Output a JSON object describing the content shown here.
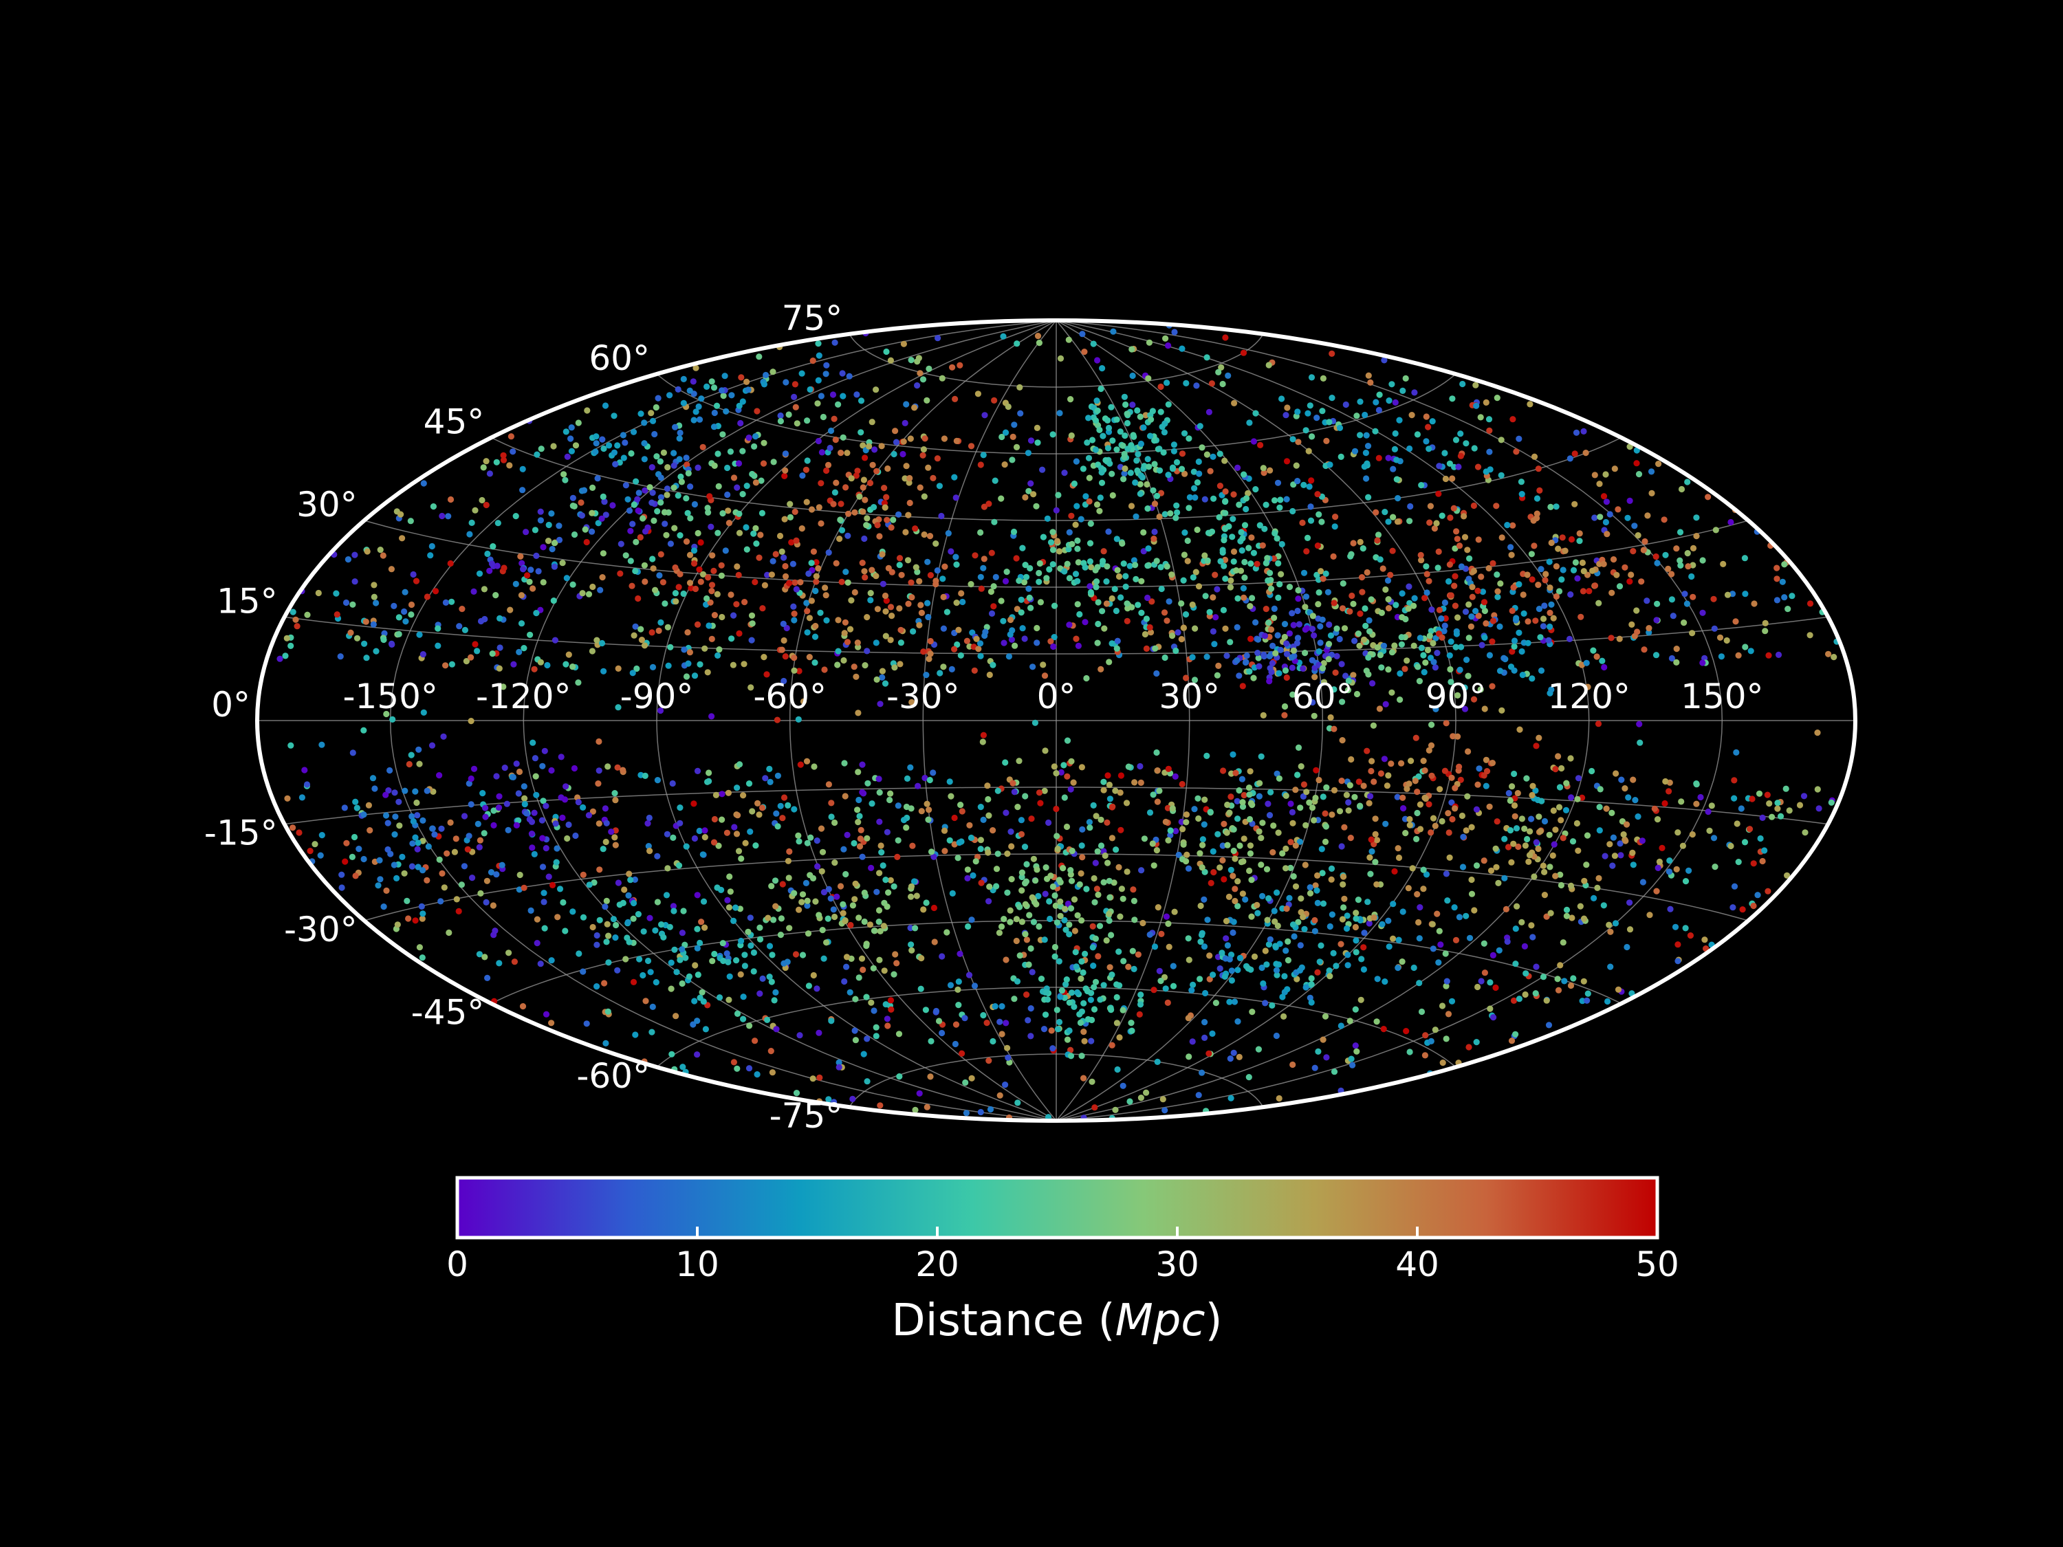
{
  "chart_data": {
    "type": "scatter",
    "projection": "aitoff",
    "background": "#000000",
    "grid": true,
    "lon_ticks": [
      -150,
      -120,
      -90,
      -60,
      -30,
      0,
      30,
      60,
      90,
      120,
      150
    ],
    "lat_ticks": [
      -75,
      -60,
      -45,
      -30,
      -15,
      0,
      15,
      30,
      45,
      60,
      75
    ],
    "lon_tick_labels": [
      "-150°",
      "-120°",
      "-90°",
      "-60°",
      "-30°",
      "0°",
      "30°",
      "60°",
      "90°",
      "120°",
      "150°"
    ],
    "lat_tick_labels": [
      "-75°",
      "-60°",
      "-45°",
      "-30°",
      "-15°",
      "0°",
      "15°",
      "30°",
      "45°",
      "60°",
      "75°"
    ],
    "colorbar": {
      "label_prefix": "Distance (",
      "label_unit": "Mpc",
      "label_suffix": ")",
      "range": [
        0,
        50
      ],
      "ticks": [
        0,
        10,
        20,
        30,
        40,
        50
      ],
      "tick_labels": [
        "0",
        "10",
        "20",
        "30",
        "40",
        "50"
      ],
      "colormap": "rainbow",
      "colormap_stops": [
        "#5a00c8",
        "#2e5cd0",
        "#0f9cc0",
        "#3cc8a8",
        "#86c878",
        "#b4a050",
        "#c8643c",
        "#c00000"
      ],
      "placement": "bottom"
    },
    "clusters": [
      {
        "lon": -145,
        "lat": 55,
        "distance": 12,
        "count": 70,
        "spread": 10
      },
      {
        "lon": -125,
        "lat": 40,
        "distance": 6,
        "count": 45,
        "spread": 7
      },
      {
        "lon": -110,
        "lat": 45,
        "distance": 25,
        "count": 60,
        "spread": 12
      },
      {
        "lon": -60,
        "lat": 50,
        "distance": 42,
        "count": 50,
        "spread": 10
      },
      {
        "lon": -80,
        "lat": 30,
        "distance": 45,
        "count": 40,
        "spread": 8
      },
      {
        "lon": -40,
        "lat": 25,
        "distance": 40,
        "count": 55,
        "spread": 10
      },
      {
        "lon": 5,
        "lat": 32,
        "distance": 22,
        "count": 70,
        "spread": 8
      },
      {
        "lon": 30,
        "lat": 62,
        "distance": 20,
        "count": 110,
        "spread": 9
      },
      {
        "lon": 48,
        "lat": 38,
        "distance": 22,
        "count": 90,
        "spread": 10
      },
      {
        "lon": 55,
        "lat": 15,
        "distance": 6,
        "count": 80,
        "spread": 6
      },
      {
        "lon": 75,
        "lat": 15,
        "distance": 28,
        "count": 70,
        "spread": 9
      },
      {
        "lon": 100,
        "lat": 18,
        "distance": 12,
        "count": 60,
        "spread": 8
      },
      {
        "lon": 90,
        "lat": 30,
        "distance": 45,
        "count": 50,
        "spread": 12
      },
      {
        "lon": 130,
        "lat": 30,
        "distance": 40,
        "count": 60,
        "spread": 12
      },
      {
        "lon": 120,
        "lat": 55,
        "distance": 15,
        "count": 50,
        "spread": 12
      },
      {
        "lon": -150,
        "lat": -20,
        "distance": 10,
        "count": 50,
        "spread": 9
      },
      {
        "lon": -120,
        "lat": -15,
        "distance": 2,
        "count": 45,
        "spread": 9
      },
      {
        "lon": -110,
        "lat": -45,
        "distance": 18,
        "count": 80,
        "spread": 10
      },
      {
        "lon": -60,
        "lat": -40,
        "distance": 30,
        "count": 70,
        "spread": 10
      },
      {
        "lon": 0,
        "lat": -40,
        "distance": 28,
        "count": 90,
        "spread": 9
      },
      {
        "lon": 10,
        "lat": -60,
        "distance": 20,
        "count": 70,
        "spread": 8
      },
      {
        "lon": 40,
        "lat": -25,
        "distance": 30,
        "count": 60,
        "spread": 10
      },
      {
        "lon": 75,
        "lat": -50,
        "distance": 14,
        "count": 90,
        "spread": 10
      },
      {
        "lon": 85,
        "lat": -10,
        "distance": 40,
        "count": 60,
        "spread": 9
      },
      {
        "lon": 125,
        "lat": -25,
        "distance": 35,
        "count": 70,
        "spread": 12
      },
      {
        "lon": 60,
        "lat": -35,
        "distance": 35,
        "count": 50,
        "spread": 12
      }
    ],
    "background_points": {
      "count": 2600,
      "distance_range": [
        0,
        50
      ]
    }
  }
}
